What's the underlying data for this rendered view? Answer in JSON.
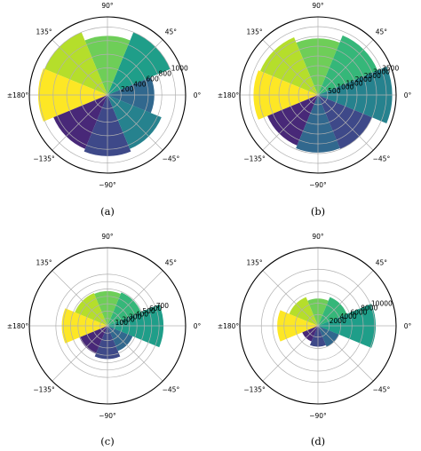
{
  "colors": {
    "palette": [
      "#fde725",
      "#b5de2b",
      "#6ece58",
      "#35b779",
      "#1f9e89",
      "#26828e",
      "#31688e",
      "#3e4989",
      "#482878"
    ],
    "grid": "#b0b0b0",
    "frame": "#000000"
  },
  "chart_data": [
    {
      "type": "polar-bar",
      "caption": "(a)",
      "angle_ticks": [
        "0°",
        "45°",
        "90°",
        "135°",
        "±180°",
        "−135°",
        "−90°",
        "−45°"
      ],
      "radial_ticks": [
        200,
        400,
        600,
        800,
        1000
      ],
      "rmax": 1150,
      "categories_deg": [
        0,
        45,
        90,
        135,
        180,
        -135,
        -90,
        -45
      ],
      "values": [
        690,
        1000,
        870,
        1000,
        1020,
        860,
        900,
        860
      ],
      "bar_colors": [
        "#31688e",
        "#1f9e89",
        "#6ece58",
        "#b5de2b",
        "#fde725",
        "#482878",
        "#3e4989",
        "#26828e"
      ],
      "show_zero_label": false
    },
    {
      "type": "polar-bar",
      "caption": "(b)",
      "angle_ticks": [
        "0°",
        "45°",
        "90°",
        "135°",
        "±180°",
        "−135°",
        "−90°",
        "−45°"
      ],
      "radial_ticks": [
        500,
        1000,
        1500,
        2000,
        2500,
        3000,
        3500
      ],
      "rmax": 4000,
      "categories_deg": [
        0,
        45,
        90,
        135,
        180,
        -135,
        -90,
        -45
      ],
      "values": [
        3800,
        3300,
        2900,
        3200,
        3300,
        2800,
        2950,
        3000
      ],
      "bar_colors": [
        "#26828e",
        "#35b779",
        "#6ece58",
        "#b5de2b",
        "#fde725",
        "#482878",
        "#31688e",
        "#3e4989"
      ],
      "show_zero_label": true
    },
    {
      "type": "polar-bar",
      "caption": "(c)",
      "angle_ticks": [
        "0°",
        "45°",
        "90°",
        "135°",
        "±180°",
        "−135°",
        "−90°",
        "−45°"
      ],
      "radial_ticks": [
        100,
        200,
        300,
        400,
        500,
        600,
        700
      ],
      "rmax": 1060,
      "categories_deg": [
        0,
        45,
        90,
        135,
        180,
        -135,
        -90,
        -45
      ],
      "values": [
        760,
        490,
        470,
        480,
        620,
        410,
        450,
        370
      ],
      "bar_colors": [
        "#1f9e89",
        "#35b779",
        "#6ece58",
        "#b5de2b",
        "#fde725",
        "#482878",
        "#3e4989",
        "#31688e"
      ],
      "show_zero_label": true
    },
    {
      "type": "polar-bar",
      "caption": "(d)",
      "angle_ticks": [
        "0°",
        "45°",
        "90°",
        "135°",
        "±180°",
        "−135°",
        "−90°",
        "−45°"
      ],
      "radial_ticks": [
        2000,
        4000,
        6000,
        8000,
        10000
      ],
      "rmax": 13800,
      "categories_deg": [
        0,
        45,
        90,
        135,
        180,
        -135,
        -90,
        -45
      ],
      "values": [
        10200,
        5500,
        4800,
        5500,
        7200,
        3000,
        3700,
        4000
      ],
      "bar_colors": [
        "#1f9e89",
        "#35b779",
        "#6ece58",
        "#b5de2b",
        "#fde725",
        "#482878",
        "#3e4989",
        "#31688e"
      ],
      "show_zero_label": false
    }
  ]
}
